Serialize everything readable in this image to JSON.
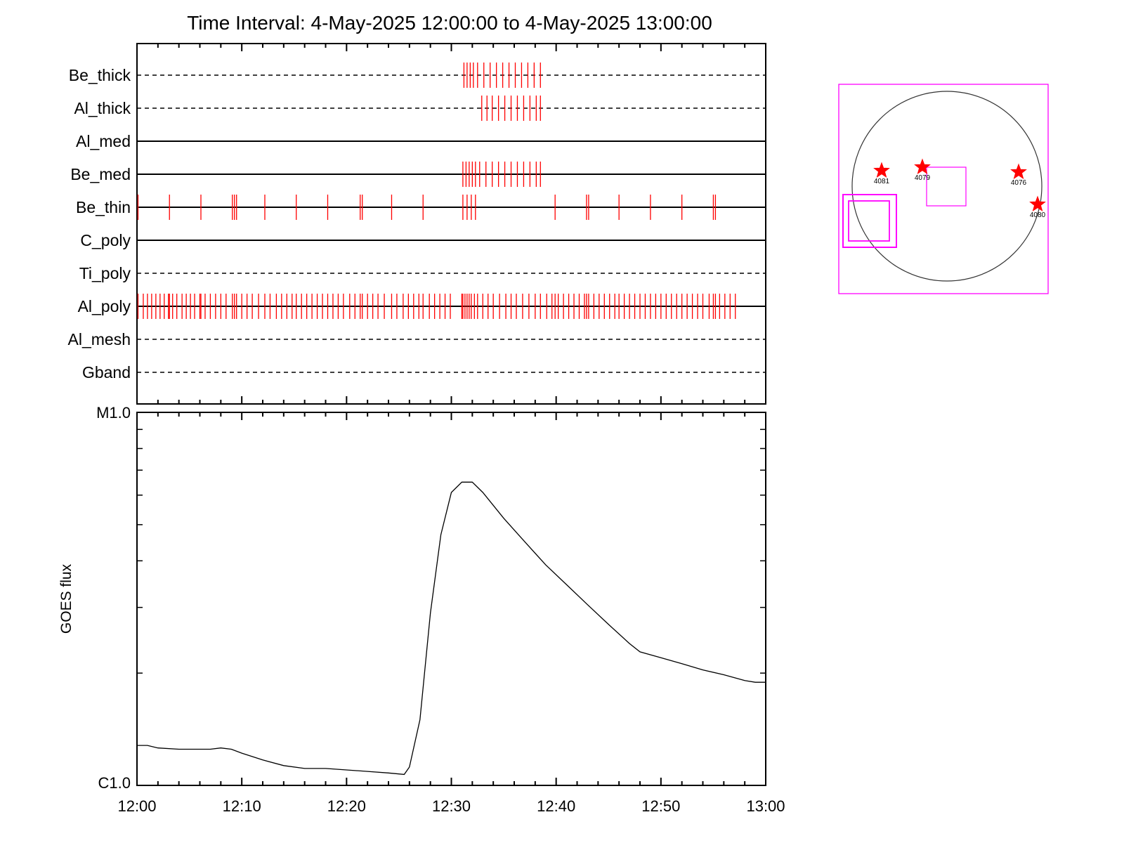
{
  "title": "Time Interval:  4-May-2025 12:00:00 to  4-May-2025 13:00:00",
  "colors": {
    "events": "#ff0000",
    "boxes": "#ff00ff",
    "axes": "#000000"
  },
  "chart_data": [
    {
      "type": "event-raster",
      "x_range_minutes": [
        0,
        60
      ],
      "filters": [
        {
          "name": "Be_thick",
          "line": "dashed",
          "events": [
            31.2,
            31.5,
            31.8,
            32.1,
            32.5,
            33.1,
            33.7,
            34.3,
            34.9,
            35.5,
            36.1,
            36.7,
            37.3,
            37.9,
            38.5
          ]
        },
        {
          "name": "Al_thick",
          "line": "dashed",
          "events": [
            32.9,
            33.4,
            33.9,
            34.5,
            35.1,
            35.7,
            36.3,
            36.9,
            37.5,
            38.1,
            38.5
          ]
        },
        {
          "name": "Al_med",
          "line": "solid",
          "events": []
        },
        {
          "name": "Be_med",
          "line": "solid",
          "events": [
            31.1,
            31.4,
            31.7,
            32.0,
            32.3,
            32.7,
            33.3,
            33.9,
            34.5,
            35.1,
            35.7,
            36.3,
            36.9,
            37.5,
            38.1,
            38.5
          ]
        },
        {
          "name": "Be_thin",
          "line": "solid",
          "events": [
            0.1,
            3.1,
            6.1,
            9.1,
            9.3,
            9.5,
            12.2,
            15.2,
            18.2,
            21.3,
            21.5,
            24.3,
            27.3,
            31.1,
            31.5,
            31.9,
            32.3,
            39.9,
            42.9,
            43.1,
            46.0,
            49.0,
            52.0,
            55.0,
            55.2
          ]
        },
        {
          "name": "C_poly",
          "line": "solid",
          "events": []
        },
        {
          "name": "Ti_poly",
          "line": "dashed",
          "events": []
        },
        {
          "name": "Al_poly",
          "line": "solid",
          "events": [
            0.1,
            0.6,
            1.0,
            1.4,
            1.8,
            2.2,
            2.6,
            3.0,
            3.1,
            3.4,
            3.8,
            4.3,
            4.7,
            5.1,
            5.5,
            6.0,
            6.1,
            6.5,
            7.0,
            7.5,
            8.0,
            8.5,
            9.1,
            9.3,
            9.5,
            10.0,
            10.5,
            11.0,
            11.6,
            12.2,
            12.7,
            13.3,
            13.8,
            14.3,
            14.8,
            15.2,
            15.7,
            16.2,
            16.7,
            17.2,
            17.7,
            18.2,
            18.7,
            19.2,
            19.7,
            20.3,
            20.8,
            21.3,
            21.5,
            22.0,
            22.5,
            23.0,
            23.6,
            24.3,
            24.8,
            25.4,
            25.9,
            26.4,
            26.9,
            27.3,
            27.9,
            28.4,
            28.9,
            29.4,
            29.9,
            31.0,
            31.1,
            31.3,
            31.5,
            31.7,
            31.9,
            32.2,
            32.5,
            33.0,
            33.5,
            34.0,
            34.6,
            35.2,
            35.7,
            36.2,
            36.8,
            37.4,
            38.0,
            38.5,
            39.1,
            39.6,
            39.9,
            40.2,
            40.7,
            41.2,
            41.7,
            42.2,
            42.7,
            42.9,
            43.1,
            43.6,
            44.1,
            44.6,
            45.1,
            45.6,
            46.0,
            46.5,
            47.0,
            47.5,
            48.0,
            48.5,
            49.0,
            49.5,
            50.0,
            50.5,
            51.0,
            51.5,
            52.0,
            52.5,
            53.0,
            53.5,
            54.0,
            54.6,
            55.0,
            55.2,
            55.6,
            56.1,
            56.6,
            57.1
          ]
        },
        {
          "name": "Al_mesh",
          "line": "dashed",
          "events": []
        },
        {
          "name": "Gband",
          "line": "dashed",
          "events": []
        }
      ]
    },
    {
      "type": "line",
      "ylabel": "GOES flux",
      "y_scale": "log",
      "y_range_wm2": [
        1e-06,
        1e-05
      ],
      "y_tick_labels": [
        "C1.0",
        "M1.0"
      ],
      "x_tick_labels": [
        "12:00",
        "12:10",
        "12:20",
        "12:30",
        "12:40",
        "12:50",
        "13:00"
      ],
      "x_minutes": [
        0,
        1,
        2,
        4,
        6,
        7,
        8,
        9,
        10,
        12,
        14,
        16,
        18,
        20,
        22,
        24,
        25.5,
        26,
        27,
        28,
        29,
        30,
        31,
        32,
        33,
        35,
        37,
        39,
        41,
        43,
        45,
        47,
        48,
        50,
        52,
        54,
        56,
        58,
        59,
        60
      ],
      "flux_wm2": [
        1.28e-06,
        1.28e-06,
        1.26e-06,
        1.25e-06,
        1.25e-06,
        1.25e-06,
        1.26e-06,
        1.25e-06,
        1.22e-06,
        1.17e-06,
        1.13e-06,
        1.11e-06,
        1.11e-06,
        1.1e-06,
        1.09e-06,
        1.08e-06,
        1.07e-06,
        1.12e-06,
        1.5e-06,
        2.9e-06,
        4.7e-06,
        6.1e-06,
        6.5e-06,
        6.5e-06,
        6.1e-06,
        5.2e-06,
        4.5e-06,
        3.9e-06,
        3.45e-06,
        3.05e-06,
        2.7e-06,
        2.4e-06,
        2.28e-06,
        2.2e-06,
        2.12e-06,
        2.04e-06,
        1.98e-06,
        1.91e-06,
        1.89e-06,
        1.89e-06
      ]
    }
  ],
  "sun_map": {
    "active_regions": [
      {
        "label": "4081"
      },
      {
        "label": "4079"
      },
      {
        "label": "4076"
      },
      {
        "label": "4080"
      }
    ]
  }
}
